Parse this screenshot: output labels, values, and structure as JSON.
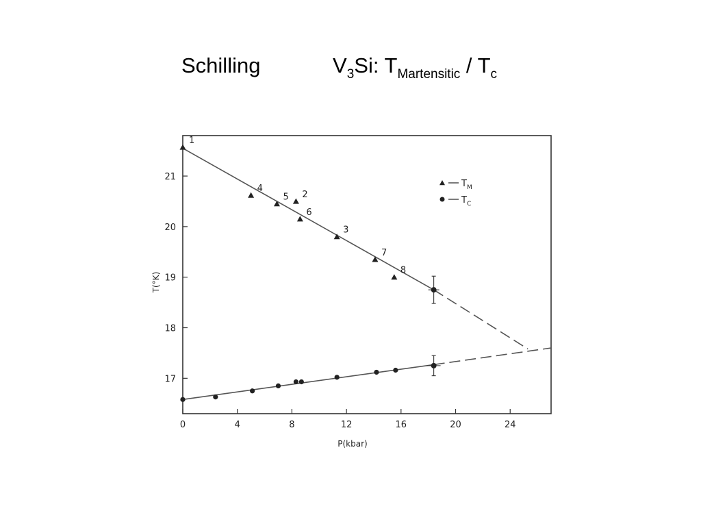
{
  "slide": {
    "title_left": "Schilling",
    "title_right": {
      "part1": "V",
      "sub1": "3",
      "part2": "Si: T",
      "sub2": "Martensitic",
      "part3": " / T",
      "sub3": "c"
    }
  },
  "chart_data": {
    "type": "scatter",
    "xlabel": "P(kbar)",
    "ylabel": "T(°K)",
    "xlim": [
      0,
      27
    ],
    "ylim": [
      16.3,
      21.8
    ],
    "xticks": [
      0,
      4,
      8,
      12,
      16,
      20,
      24
    ],
    "yticks": [
      17,
      18,
      19,
      20,
      21
    ],
    "legend": {
      "placement": "top-right",
      "entries": [
        {
          "label": "T",
          "sub": "M",
          "marker": "triangle"
        },
        {
          "label": "T",
          "sub": "C",
          "marker": "circle"
        }
      ]
    },
    "series": [
      {
        "name": "TM",
        "marker": "triangle",
        "points": [
          {
            "x": 0.0,
            "y": 21.57,
            "label": "1"
          },
          {
            "x": 8.3,
            "y": 20.5,
            "label": "2"
          },
          {
            "x": 11.3,
            "y": 19.8,
            "label": "3"
          },
          {
            "x": 5.0,
            "y": 20.62,
            "label": "4"
          },
          {
            "x": 6.9,
            "y": 20.45,
            "label": "5"
          },
          {
            "x": 8.6,
            "y": 20.15,
            "label": "6"
          },
          {
            "x": 14.1,
            "y": 19.35,
            "label": "7"
          },
          {
            "x": 15.5,
            "y": 19.0,
            "label": "8"
          }
        ],
        "errorbar_point": {
          "x": 18.4,
          "y": 18.75,
          "yerr": 0.27,
          "xerr": 0.4
        },
        "fit": {
          "solid": [
            [
              0,
              21.55
            ],
            [
              18.4,
              18.75
            ]
          ],
          "dashed": [
            [
              18.4,
              18.75
            ],
            [
              25.3,
              17.58
            ]
          ]
        }
      },
      {
        "name": "TC",
        "marker": "circle",
        "points": [
          {
            "x": 0.0,
            "y": 16.58
          },
          {
            "x": 2.4,
            "y": 16.63
          },
          {
            "x": 5.1,
            "y": 16.75
          },
          {
            "x": 7.0,
            "y": 16.85
          },
          {
            "x": 8.3,
            "y": 16.93
          },
          {
            "x": 8.7,
            "y": 16.93
          },
          {
            "x": 11.3,
            "y": 17.02
          },
          {
            "x": 14.2,
            "y": 17.12
          },
          {
            "x": 15.6,
            "y": 17.16
          }
        ],
        "errorbar_point": {
          "x": 18.4,
          "y": 17.25,
          "yerr": 0.2,
          "xerr": 0.5
        },
        "fit": {
          "solid": [
            [
              0,
              16.58
            ],
            [
              18.4,
              17.27
            ]
          ],
          "dashed": [
            [
              18.4,
              17.27
            ],
            [
              27,
              17.6
            ]
          ]
        }
      }
    ]
  }
}
